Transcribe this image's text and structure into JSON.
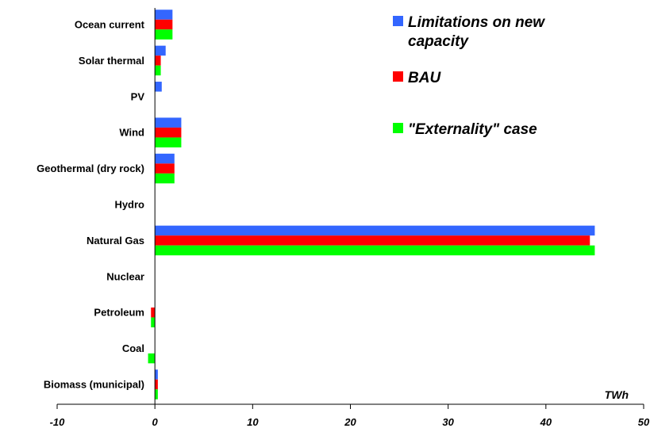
{
  "chart_data": {
    "type": "bar",
    "orientation": "horizontal",
    "title": "",
    "xlabel": "TWh",
    "ylabel": "",
    "xlim": [
      -10,
      50
    ],
    "xticks": [
      -10,
      0,
      10,
      20,
      30,
      40,
      50
    ],
    "grid": false,
    "legend_position": "top-right",
    "categories": [
      "Ocean current",
      "Solar thermal",
      "PV",
      "Wind",
      "Geothermal (dry rock)",
      "Hydro",
      "Natural Gas",
      "Nuclear",
      "Petroleum",
      "Coal",
      "Biomass (municipal)"
    ],
    "series": [
      {
        "name": "Limitations on new capacity",
        "color": "#3366ff",
        "values": [
          1.8,
          1.1,
          0.7,
          2.7,
          2.0,
          0,
          45.0,
          0,
          0,
          0,
          0.3
        ]
      },
      {
        "name": "BAU",
        "color": "#ff0000",
        "values": [
          1.8,
          0.6,
          0,
          2.7,
          2.0,
          0,
          44.5,
          0,
          -0.4,
          0,
          0.3
        ]
      },
      {
        "name": "\"Externality\" case",
        "color": "#00ff00",
        "values": [
          1.8,
          0.6,
          0,
          2.7,
          2.0,
          0,
          45.0,
          0,
          -0.4,
          -0.7,
          0.3
        ]
      }
    ]
  }
}
